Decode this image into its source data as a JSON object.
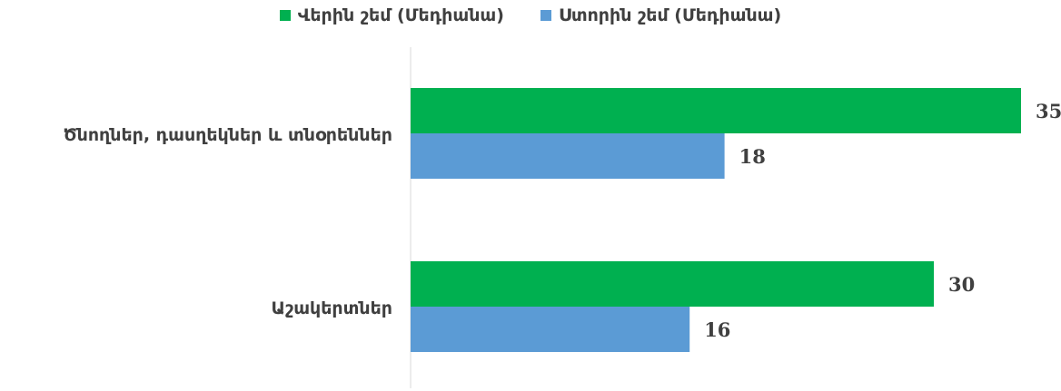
{
  "chart_data": {
    "type": "bar",
    "orientation": "horizontal",
    "categories": [
      "Ծնողներ, դասղեկներ և տնօրեններ",
      "Աշակերտներ"
    ],
    "series": [
      {
        "name": "Վերին շեմ (Մեդիանա)",
        "values": [
          35,
          30
        ],
        "color": "#00b050"
      },
      {
        "name": "Ստորին շեմ (Մեդիանա)",
        "values": [
          18,
          16
        ],
        "color": "#5b9bd5"
      }
    ],
    "xlim": [
      0,
      36
    ],
    "legend": "top",
    "grid": false,
    "data_labels": true
  }
}
